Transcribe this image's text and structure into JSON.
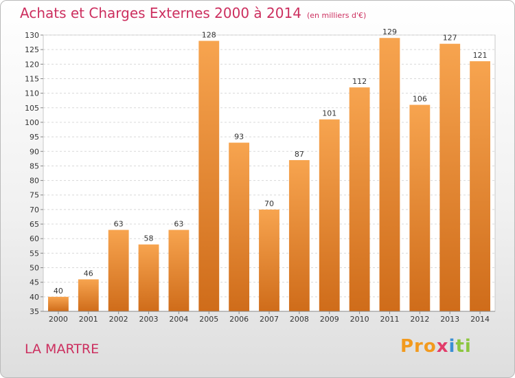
{
  "chart_data": {
    "type": "bar",
    "title": "Achats et Charges Externes 2000 à 2014",
    "subtitle": "(en milliers d'€)",
    "categories": [
      "2000",
      "2001",
      "2002",
      "2003",
      "2004",
      "2005",
      "2006",
      "2007",
      "2008",
      "2009",
      "2010",
      "2011",
      "2012",
      "2013",
      "2014"
    ],
    "values": [
      40,
      46,
      63,
      58,
      63,
      128,
      93,
      70,
      87,
      101,
      112,
      129,
      106,
      127,
      121
    ],
    "ylim": [
      35,
      130
    ],
    "yticks": [
      35,
      40,
      45,
      50,
      55,
      60,
      65,
      70,
      75,
      80,
      85,
      90,
      95,
      100,
      105,
      110,
      115,
      120,
      125,
      130
    ],
    "grid": true,
    "bar_color": "#f0913a"
  },
  "footer": {
    "place_name": "LA MARTRE",
    "logo_parts": [
      "Pro",
      "x",
      "i",
      "ti"
    ]
  }
}
